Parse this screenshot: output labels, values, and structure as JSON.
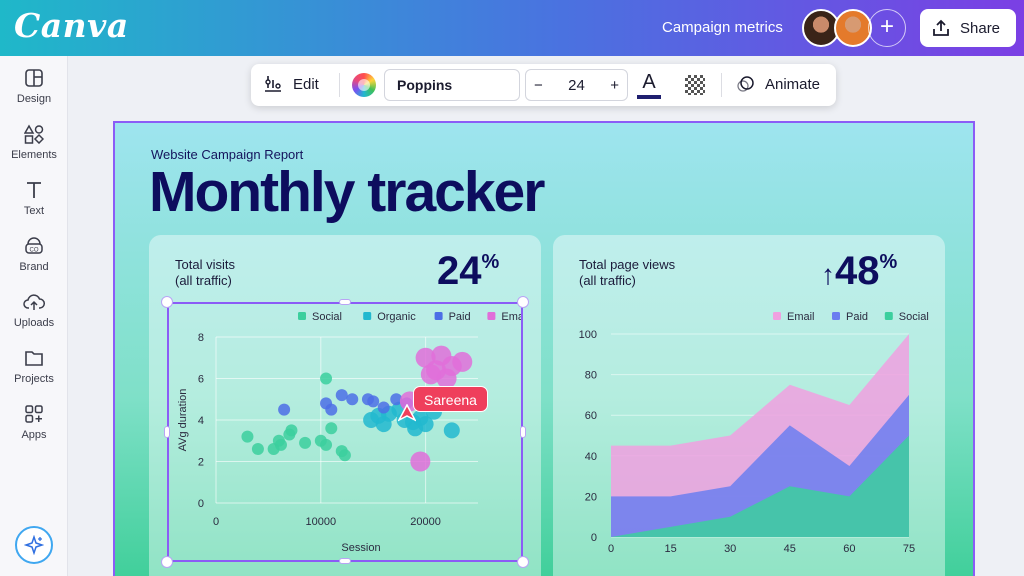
{
  "app": {
    "logo": "Canva",
    "doc_title": "Campaign metrics",
    "share_label": "Share",
    "add_icon": "+"
  },
  "sidebar": {
    "items": [
      {
        "label": "Design",
        "icon": "layout-icon"
      },
      {
        "label": "Elements",
        "icon": "shapes-icon"
      },
      {
        "label": "Text",
        "icon": "text-icon"
      },
      {
        "label": "Brand",
        "icon": "brand-icon"
      },
      {
        "label": "Uploads",
        "icon": "cloud-upload-icon"
      },
      {
        "label": "Projects",
        "icon": "folder-icon"
      },
      {
        "label": "Apps",
        "icon": "apps-icon"
      }
    ]
  },
  "toolbar": {
    "edit_label": "Edit",
    "font": "Poppins",
    "font_size": "24",
    "minus": "−",
    "plus": "+",
    "text_color_glyph": "A",
    "animate_label": "Animate"
  },
  "report": {
    "subtitle": "Website Campaign Report",
    "title": "Monthly tracker"
  },
  "card1": {
    "label_line1": "Total visits",
    "label_line2": "(all traffic)",
    "pct_value": "24",
    "pct_sign": "%"
  },
  "card2": {
    "label_line1": "Total page views",
    "label_line2": "(all traffic)",
    "arrow": "↑",
    "pct_value": "48",
    "pct_sign": "%"
  },
  "collaborator_tag": "Sareena",
  "chart_data": [
    {
      "type": "scatter",
      "xlabel": "Session",
      "ylabel": "AVg duration",
      "xlim": [
        0,
        25000
      ],
      "ylim": [
        0,
        8
      ],
      "xticks": [
        "0",
        "10000",
        "20000"
      ],
      "yticks": [
        "0",
        "2",
        "4",
        "6",
        "8"
      ],
      "legend_position": "top",
      "series": [
        {
          "name": "Social",
          "color": "#3ccf9e",
          "points": [
            [
              3000,
              3.2
            ],
            [
              4000,
              2.6
            ],
            [
              5500,
              2.6
            ],
            [
              6000,
              3.0
            ],
            [
              6200,
              2.8
            ],
            [
              7000,
              3.3
            ],
            [
              7200,
              3.5
            ],
            [
              8500,
              2.9
            ],
            [
              10000,
              3.0
            ],
            [
              10500,
              2.8
            ],
            [
              11000,
              3.6
            ],
            [
              12000,
              2.5
            ],
            [
              12300,
              2.3
            ],
            [
              10500,
              6.0
            ]
          ]
        },
        {
          "name": "Organic",
          "color": "#22b8cf",
          "points": [
            [
              14800,
              4.0
            ],
            [
              15500,
              4.2
            ],
            [
              16000,
              3.8
            ],
            [
              16500,
              4.3
            ],
            [
              17500,
              4.5
            ],
            [
              18000,
              4.0
            ],
            [
              18800,
              3.9
            ],
            [
              19500,
              4.1
            ],
            [
              20000,
              3.8
            ],
            [
              20800,
              4.4
            ],
            [
              22500,
              3.5
            ],
            [
              19000,
              3.6
            ]
          ]
        },
        {
          "name": "Paid",
          "color": "#4c6ee6",
          "points": [
            [
              6500,
              4.5
            ],
            [
              10500,
              4.8
            ],
            [
              11000,
              4.5
            ],
            [
              12000,
              5.2
            ],
            [
              13000,
              5.0
            ],
            [
              14500,
              5.0
            ],
            [
              15000,
              4.9
            ],
            [
              16000,
              4.6
            ],
            [
              17200,
              5.0
            ],
            [
              18200,
              4.8
            ]
          ]
        },
        {
          "name": "Email",
          "color": "#e06ed9",
          "points": [
            [
              20000,
              7.0
            ],
            [
              21000,
              6.4
            ],
            [
              21500,
              7.1
            ],
            [
              22000,
              6.0
            ],
            [
              22500,
              6.6
            ],
            [
              23500,
              6.8
            ],
            [
              20500,
              6.2
            ],
            [
              19500,
              2.0
            ],
            [
              18500,
              4.9
            ]
          ]
        }
      ]
    },
    {
      "type": "area",
      "x": [
        0,
        15,
        30,
        45,
        60,
        75
      ],
      "xticks": [
        "0",
        "15",
        "30",
        "45",
        "60",
        "75"
      ],
      "yticks": [
        "0",
        "20",
        "40",
        "60",
        "80",
        "100"
      ],
      "ylim": [
        0,
        100
      ],
      "xlim": [
        0,
        75
      ],
      "legend_position": "top",
      "series": [
        {
          "name": "Social",
          "color": "#3ccf9e",
          "values": [
            0,
            5,
            10,
            25,
            20,
            50
          ]
        },
        {
          "name": "Paid",
          "color": "#6b7ef0",
          "values": [
            20,
            20,
            25,
            55,
            35,
            70
          ]
        },
        {
          "name": "Email",
          "color": "#f0a0e0",
          "values": [
            45,
            45,
            50,
            75,
            65,
            100
          ]
        }
      ]
    }
  ]
}
